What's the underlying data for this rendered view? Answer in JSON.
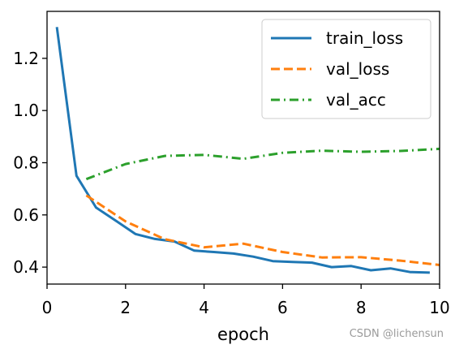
{
  "chart_data": {
    "type": "line",
    "xlabel": "epoch",
    "ylabel": "",
    "xlim": [
      0,
      10
    ],
    "ylim": [
      0.335,
      1.38
    ],
    "xticks": [
      0,
      2,
      4,
      6,
      8,
      10
    ],
    "yticks": [
      0.4,
      0.6,
      0.8,
      1.0,
      1.2
    ],
    "xtick_labels": [
      "0",
      "2",
      "4",
      "6",
      "8",
      "10"
    ],
    "ytick_labels": [
      "0.4",
      "0.6",
      "0.8",
      "1.0",
      "1.2"
    ],
    "grid": false,
    "legend_position": "top-right",
    "series": [
      {
        "name": "train_loss",
        "color": "#1f77b4",
        "style": "solid",
        "x": [
          0.25,
          0.75,
          1.25,
          1.75,
          2.25,
          2.75,
          3.25,
          3.75,
          4.25,
          4.75,
          5.25,
          5.75,
          6.25,
          6.75,
          7.25,
          7.75,
          8.25,
          8.75,
          9.25,
          9.75
        ],
        "y": [
          1.32,
          0.75,
          0.628,
          0.578,
          0.527,
          0.508,
          0.498,
          0.463,
          0.458,
          0.452,
          0.44,
          0.423,
          0.42,
          0.417,
          0.4,
          0.404,
          0.388,
          0.395,
          0.381,
          0.379
        ]
      },
      {
        "name": "val_loss",
        "color": "#ff7f0e",
        "style": "dashed",
        "x": [
          1,
          2,
          3,
          4,
          5,
          6,
          7,
          8,
          9,
          10
        ],
        "y": [
          0.675,
          0.575,
          0.507,
          0.476,
          0.49,
          0.458,
          0.437,
          0.438,
          0.425,
          0.408
        ]
      },
      {
        "name": "val_acc",
        "color": "#2ca02c",
        "style": "dashdot",
        "x": [
          1,
          2,
          3,
          4,
          5,
          6,
          7,
          8,
          9,
          10
        ],
        "y": [
          0.737,
          0.795,
          0.826,
          0.83,
          0.815,
          0.838,
          0.846,
          0.842,
          0.845,
          0.853
        ]
      }
    ]
  },
  "watermark": "CSDN @lichensun"
}
